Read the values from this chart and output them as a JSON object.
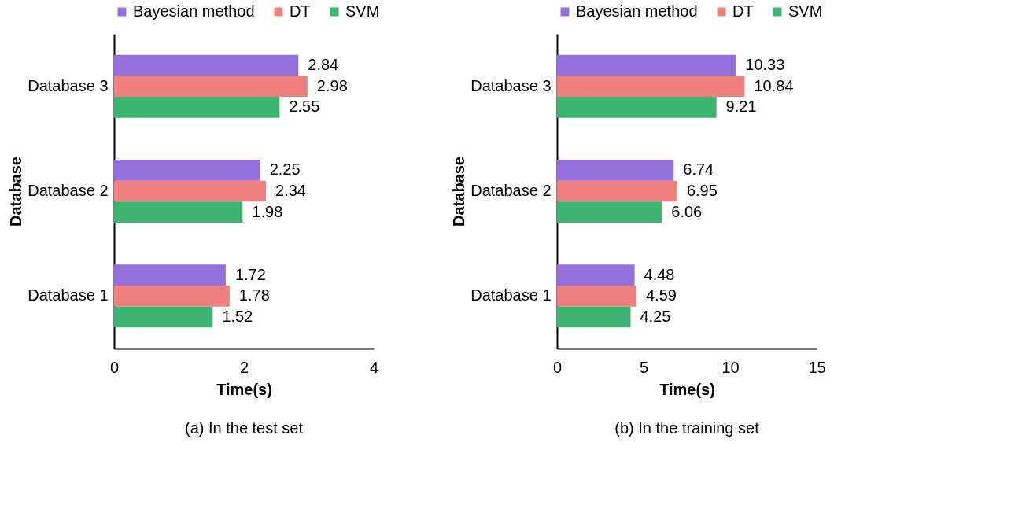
{
  "chart_data": [
    {
      "type": "bar",
      "orientation": "horizontal",
      "title": "(a) In the test set",
      "xlabel": "Time(s)",
      "ylabel": "Database",
      "categories": [
        "Database 3",
        "Database 2",
        "Database 1"
      ],
      "xlim": [
        0,
        4
      ],
      "xticks": [
        0,
        2,
        4
      ],
      "grid": false,
      "legend": "top",
      "data_labels": true,
      "series": [
        {
          "name": "Bayesian method",
          "color": "#9370db",
          "values": [
            2.84,
            2.25,
            1.72
          ]
        },
        {
          "name": "DT",
          "color": "#f08080",
          "values": [
            2.98,
            2.34,
            1.78
          ]
        },
        {
          "name": "SVM",
          "color": "#3cb371",
          "values": [
            2.55,
            1.98,
            1.52
          ]
        }
      ]
    },
    {
      "type": "bar",
      "orientation": "horizontal",
      "title": "(b) In the training set",
      "xlabel": "Time(s)",
      "ylabel": "Database",
      "categories": [
        "Database 3",
        "Database 2",
        "Database 1"
      ],
      "xlim": [
        0,
        15
      ],
      "xticks": [
        0,
        5,
        10,
        15
      ],
      "grid": false,
      "legend": "top",
      "data_labels": true,
      "series": [
        {
          "name": "Bayesian method",
          "color": "#9370db",
          "values": [
            10.33,
            6.74,
            4.48
          ]
        },
        {
          "name": "DT",
          "color": "#f08080",
          "values": [
            10.84,
            6.95,
            4.59
          ]
        },
        {
          "name": "SVM",
          "color": "#3cb371",
          "values": [
            9.21,
            6.06,
            4.25
          ]
        }
      ]
    }
  ]
}
